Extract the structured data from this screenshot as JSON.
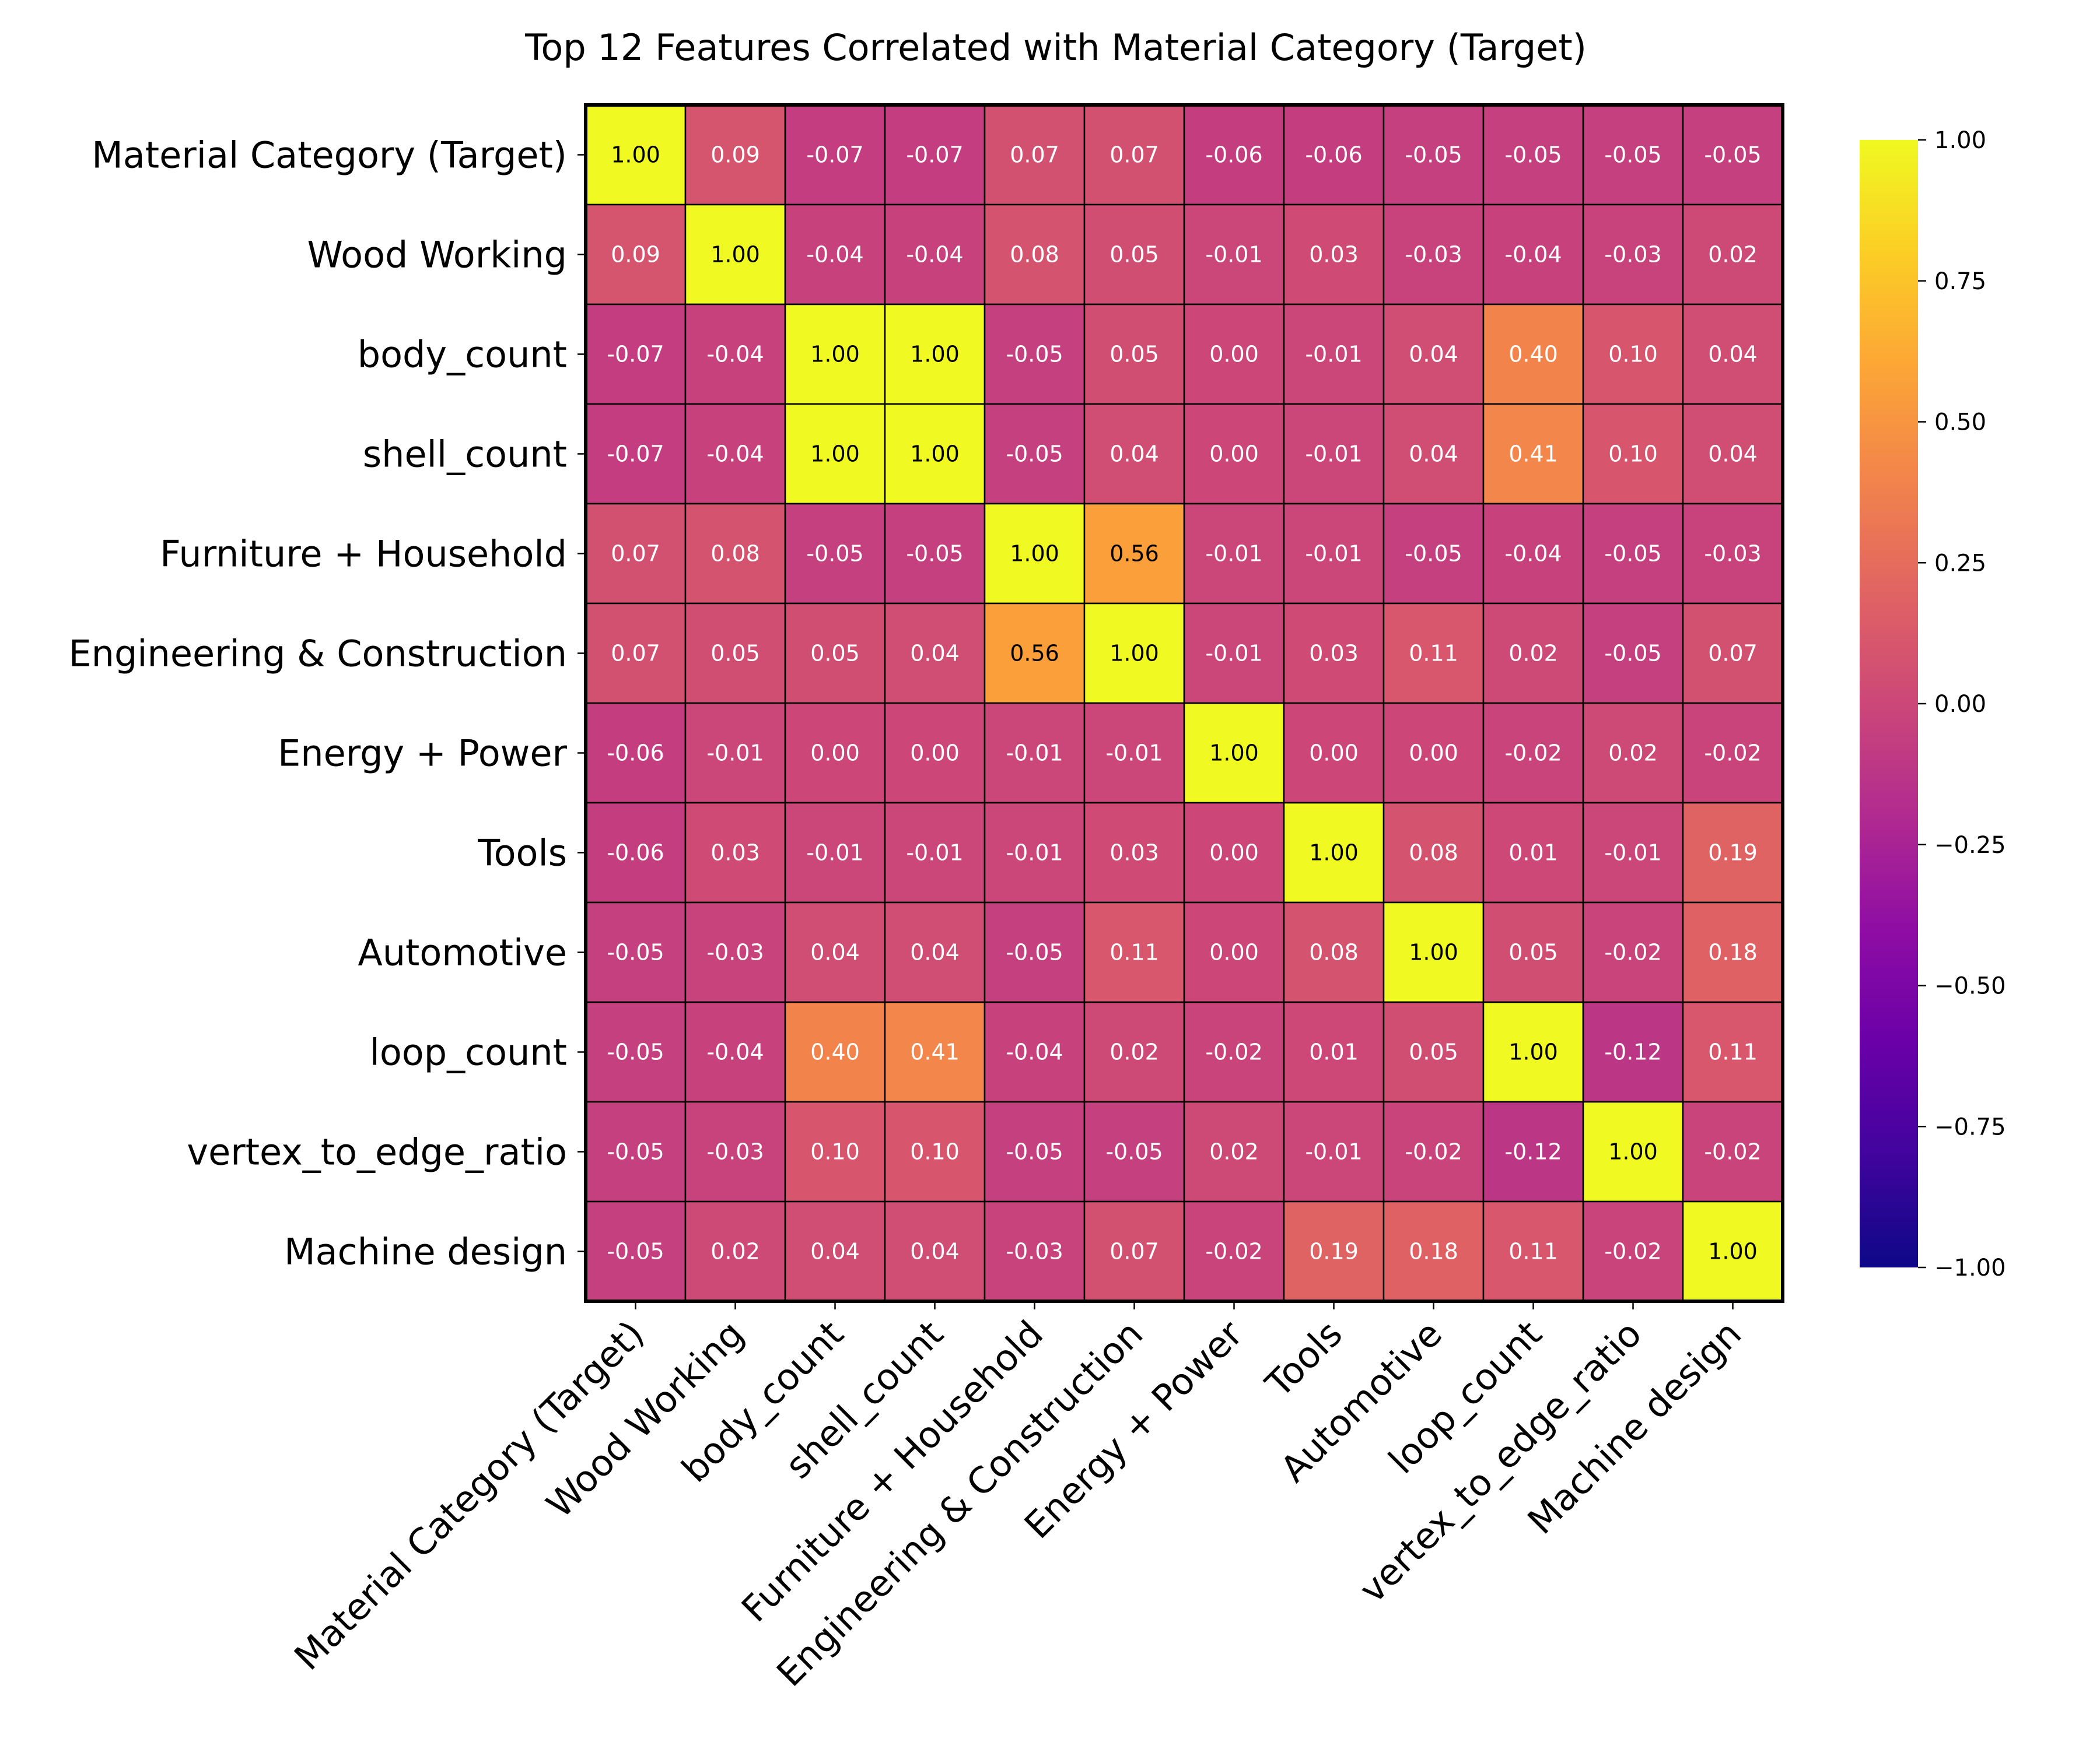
{
  "chart_data": {
    "type": "heatmap",
    "title": "Top 12 Features Correlated with Material Category (Target)",
    "labels": [
      "Material Category (Target)",
      "Wood Working",
      "body_count",
      "shell_count",
      "Furniture + Household",
      "Engineering & Construction",
      "Energy + Power",
      "Tools",
      "Automotive",
      "loop_count",
      "vertex_to_edge_ratio",
      "Machine design"
    ],
    "values": [
      [
        1.0,
        0.09,
        -0.07,
        -0.07,
        0.07,
        0.07,
        -0.06,
        -0.06,
        -0.05,
        -0.05,
        -0.05,
        -0.05
      ],
      [
        0.09,
        1.0,
        -0.04,
        -0.04,
        0.08,
        0.05,
        -0.01,
        0.03,
        -0.03,
        -0.04,
        -0.03,
        0.02
      ],
      [
        -0.07,
        -0.04,
        1.0,
        1.0,
        -0.05,
        0.05,
        0.0,
        -0.01,
        0.04,
        0.4,
        0.1,
        0.04
      ],
      [
        -0.07,
        -0.04,
        1.0,
        1.0,
        -0.05,
        0.04,
        -0.0,
        -0.01,
        0.04,
        0.41,
        0.1,
        0.04
      ],
      [
        0.07,
        0.08,
        -0.05,
        -0.05,
        1.0,
        0.56,
        -0.01,
        -0.01,
        -0.05,
        -0.04,
        -0.05,
        -0.03
      ],
      [
        0.07,
        0.05,
        0.05,
        0.04,
        0.56,
        1.0,
        -0.01,
        0.03,
        0.11,
        0.02,
        -0.05,
        0.07
      ],
      [
        -0.06,
        -0.01,
        0.0,
        -0.0,
        -0.01,
        -0.01,
        1.0,
        0.0,
        0.0,
        -0.02,
        0.02,
        -0.02
      ],
      [
        -0.06,
        0.03,
        -0.01,
        -0.01,
        -0.01,
        0.03,
        0.0,
        1.0,
        0.08,
        0.01,
        -0.01,
        0.19
      ],
      [
        -0.05,
        -0.03,
        0.04,
        0.04,
        -0.05,
        0.11,
        0.0,
        0.08,
        1.0,
        0.05,
        -0.02,
        0.18
      ],
      [
        -0.05,
        -0.04,
        0.4,
        0.41,
        -0.04,
        0.02,
        -0.02,
        0.01,
        0.05,
        1.0,
        -0.12,
        0.11
      ],
      [
        -0.05,
        -0.03,
        0.1,
        0.1,
        -0.05,
        -0.05,
        0.02,
        -0.01,
        -0.02,
        -0.12,
        1.0,
        -0.02
      ],
      [
        -0.05,
        0.02,
        0.04,
        0.04,
        -0.03,
        0.07,
        -0.02,
        0.19,
        0.18,
        0.11,
        -0.02,
        1.0
      ]
    ],
    "value_format": "2 decimals",
    "colormap": "plasma",
    "vmin": -1.0,
    "vmax": 1.0,
    "colorbar_ticks": [
      1.0,
      0.75,
      0.5,
      0.25,
      0.0,
      -0.25,
      -0.5,
      -0.75,
      -1.0
    ],
    "colorbar_tick_labels": [
      "1.00",
      "0.75",
      "0.50",
      "0.25",
      "0.00",
      "−0.25",
      "−0.50",
      "−0.75",
      "−1.00"
    ],
    "xlabel": "",
    "ylabel": "",
    "grid": true
  }
}
